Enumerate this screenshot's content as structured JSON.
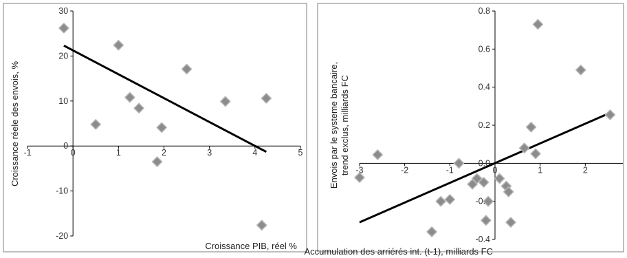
{
  "chart_data": [
    {
      "type": "scatter",
      "xlabel": "Croissance PIB, réel %",
      "ylabel": "Croissance réele des envois, %",
      "xlim": [
        -1,
        5
      ],
      "ylim": [
        -20,
        30
      ],
      "x_ticks": [
        "-1",
        "0",
        "1",
        "2",
        "3",
        "4",
        "5"
      ],
      "y_ticks": [
        "-20",
        "-10",
        "0",
        "10",
        "20",
        "30"
      ],
      "grid": false,
      "marker_color": "#8c8c8c",
      "trend_color": "#000000",
      "points": [
        {
          "x": -0.2,
          "y": 26.2
        },
        {
          "x": 0.5,
          "y": 4.8
        },
        {
          "x": 1.0,
          "y": 22.4
        },
        {
          "x": 1.25,
          "y": 10.8
        },
        {
          "x": 1.45,
          "y": 8.4
        },
        {
          "x": 1.85,
          "y": -3.5
        },
        {
          "x": 1.95,
          "y": 4.1
        },
        {
          "x": 2.5,
          "y": 17.1
        },
        {
          "x": 3.35,
          "y": 9.9
        },
        {
          "x": 4.15,
          "y": -17.6
        },
        {
          "x": 4.25,
          "y": 10.6
        }
      ],
      "trendline": {
        "x": [
          -0.2,
          4.25
        ],
        "y": [
          22.3,
          -1.3
        ]
      }
    },
    {
      "type": "scatter",
      "xlabel": "Accumulation des arriérés int. (t-1), milliards FC",
      "ylabel": "Envois par le systeme bancaire, trend exclus, milliards FC",
      "ylabel_lines": [
        "Envois par le systeme bancaire,",
        "trend exclus, milliards FC"
      ],
      "xlim": [
        -3,
        3
      ],
      "ylim": [
        -0.4,
        0.8
      ],
      "x_ticks": [
        "-3",
        "-2",
        "-1",
        "0",
        "1",
        "2"
      ],
      "y_ticks": [
        "-0.4",
        "-0.2",
        "0.0",
        "0.2",
        "0.4",
        "0.6",
        "0.8"
      ],
      "grid": false,
      "marker_color": "#8c8c8c",
      "trend_color": "#000000",
      "points": [
        {
          "x": -3.0,
          "y": -0.075
        },
        {
          "x": -2.6,
          "y": 0.045
        },
        {
          "x": -1.2,
          "y": -0.2
        },
        {
          "x": -1.4,
          "y": -0.36
        },
        {
          "x": -1.0,
          "y": -0.19
        },
        {
          "x": -0.8,
          "y": 0.0
        },
        {
          "x": -0.5,
          "y": -0.11
        },
        {
          "x": -0.4,
          "y": -0.08
        },
        {
          "x": -0.25,
          "y": -0.1
        },
        {
          "x": -0.15,
          "y": -0.2
        },
        {
          "x": -0.2,
          "y": -0.3
        },
        {
          "x": 0.1,
          "y": -0.08
        },
        {
          "x": 0.25,
          "y": -0.12
        },
        {
          "x": 0.3,
          "y": -0.15
        },
        {
          "x": 0.35,
          "y": -0.31
        },
        {
          "x": 0.65,
          "y": 0.08
        },
        {
          "x": 0.8,
          "y": 0.19
        },
        {
          "x": 0.9,
          "y": 0.05
        },
        {
          "x": 0.95,
          "y": 0.73
        },
        {
          "x": 1.9,
          "y": 0.49
        },
        {
          "x": 2.55,
          "y": 0.255
        }
      ],
      "trendline": {
        "x": [
          -3.0,
          2.55
        ],
        "y": [
          -0.31,
          0.265
        ]
      }
    }
  ]
}
